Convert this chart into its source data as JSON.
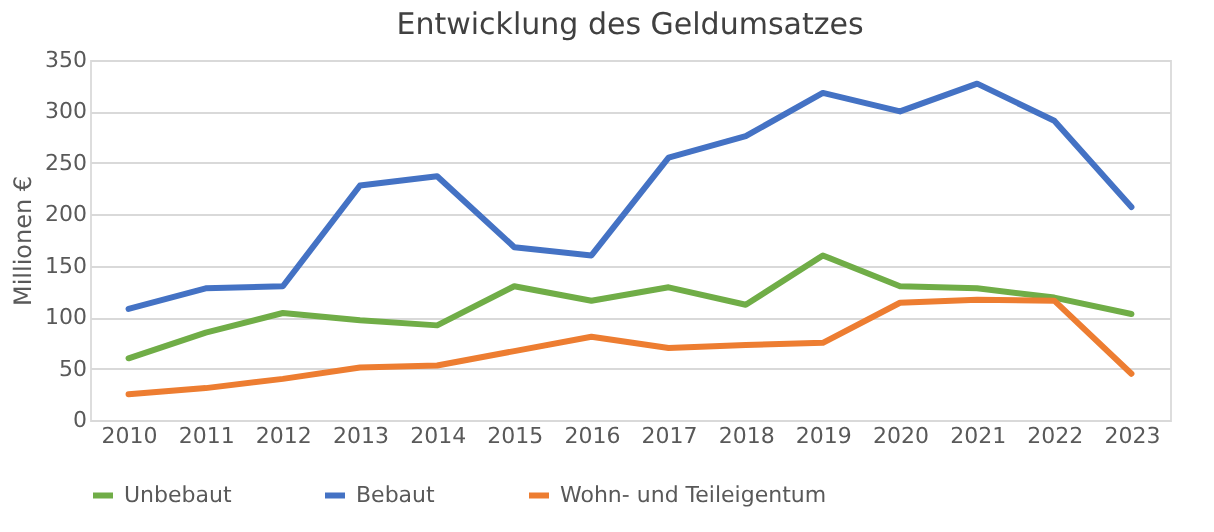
{
  "chart_data": {
    "type": "line",
    "title": "Entwicklung des Geldumsatzes",
    "ylabel": "Millionen €",
    "categories": [
      "2010",
      "2011",
      "2012",
      "2013",
      "2014",
      "2015",
      "2016",
      "2017",
      "2018",
      "2019",
      "2020",
      "2021",
      "2022",
      "2023"
    ],
    "series": [
      {
        "name": "Unbebaut",
        "color": "#70ad47",
        "values": [
          60,
          85,
          104,
          97,
          92,
          130,
          116,
          129,
          112,
          160,
          130,
          128,
          119,
          103
        ]
      },
      {
        "name": "Bebaut",
        "color": "#4472c4",
        "values": [
          108,
          128,
          130,
          228,
          237,
          168,
          160,
          255,
          276,
          318,
          300,
          327,
          291,
          207
        ]
      },
      {
        "name": "Wohn- und Teileigentum",
        "color": "#ed7d31",
        "values": [
          25,
          31,
          40,
          51,
          53,
          67,
          81,
          70,
          73,
          75,
          114,
          117,
          116,
          45
        ]
      }
    ],
    "ylim": [
      0,
      350
    ],
    "yticks": [
      0,
      50,
      100,
      150,
      200,
      250,
      300,
      350
    ],
    "grid": "y",
    "legend": "bottom",
    "line_style": "solid",
    "marker": "none"
  }
}
